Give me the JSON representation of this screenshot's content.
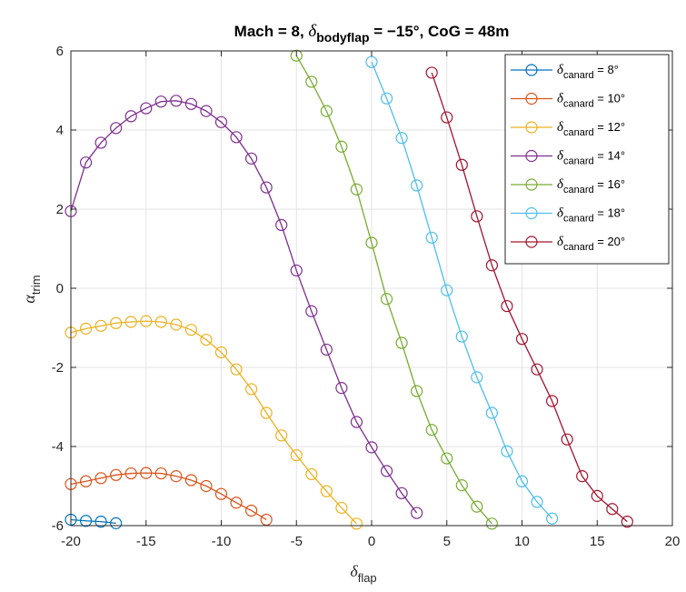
{
  "chart_data": {
    "type": "line",
    "title": {
      "prefix": "Mach = 8, ",
      "symbol": "δ",
      "subscript": "bodyflap",
      "suffix": " = −15°, CoG = 48m"
    },
    "xlabel": {
      "symbol": "δ",
      "subscript": "flap"
    },
    "ylabel": {
      "symbol": "α",
      "subscript": "trim"
    },
    "xlim": [
      -20,
      20
    ],
    "ylim": [
      -6,
      6
    ],
    "xticks": [
      -20,
      -15,
      -10,
      -5,
      0,
      5,
      10,
      15,
      20
    ],
    "yticks": [
      -6,
      -4,
      -2,
      0,
      2,
      4,
      6
    ],
    "xtick_labels": [
      "-20",
      "-15",
      "-10",
      "-5",
      "0",
      "5",
      "10",
      "15",
      "20"
    ],
    "ytick_labels": [
      "-6",
      "-4",
      "-2",
      "0",
      "2",
      "4",
      "6"
    ],
    "grid": true,
    "legend_position": "top-right",
    "series": [
      {
        "symbol": "δ",
        "subscript": "canard",
        "suffix": " = 8°",
        "color": "#0072BD",
        "x": [
          -20,
          -19,
          -18,
          -17
        ],
        "y": [
          -5.85,
          -5.88,
          -5.9,
          -5.94
        ]
      },
      {
        "symbol": "δ",
        "subscript": "canard",
        "suffix": " = 10°",
        "color": "#D95319",
        "x": [
          -20,
          -19,
          -18,
          -17,
          -16,
          -15,
          -14,
          -13,
          -12,
          -11,
          -10,
          -9,
          -8,
          -7
        ],
        "y": [
          -4.95,
          -4.88,
          -4.8,
          -4.72,
          -4.68,
          -4.67,
          -4.68,
          -4.75,
          -4.85,
          -5.0,
          -5.2,
          -5.42,
          -5.62,
          -5.85
        ]
      },
      {
        "symbol": "δ",
        "subscript": "canard",
        "suffix": " = 12°",
        "color": "#EDB120",
        "x": [
          -20,
          -19,
          -18,
          -17,
          -16,
          -15,
          -14,
          -13,
          -12,
          -11,
          -10,
          -9,
          -8,
          -7,
          -6,
          -5,
          -4,
          -3,
          -2,
          -1
        ],
        "y": [
          -1.12,
          -1.02,
          -0.95,
          -0.88,
          -0.85,
          -0.83,
          -0.85,
          -0.92,
          -1.05,
          -1.3,
          -1.62,
          -2.05,
          -2.55,
          -3.15,
          -3.72,
          -4.22,
          -4.7,
          -5.13,
          -5.55,
          -5.95
        ]
      },
      {
        "symbol": "δ",
        "subscript": "canard",
        "suffix": " = 14°",
        "color": "#7E2F8E",
        "x": [
          -20,
          -19,
          -18,
          -17,
          -16,
          -15,
          -14,
          -13,
          -12,
          -11,
          -10,
          -9,
          -8,
          -7,
          -6,
          -5,
          -4,
          -3,
          -2,
          -1,
          0,
          1,
          2,
          3
        ],
        "y": [
          1.95,
          3.18,
          3.68,
          4.05,
          4.35,
          4.55,
          4.72,
          4.74,
          4.66,
          4.48,
          4.2,
          3.82,
          3.28,
          2.55,
          1.6,
          0.45,
          -0.58,
          -1.55,
          -2.52,
          -3.38,
          -4.02,
          -4.62,
          -5.18,
          -5.68
        ]
      },
      {
        "symbol": "δ",
        "subscript": "canard",
        "suffix": " = 16°",
        "color": "#77AC30",
        "x": [
          -5,
          -4,
          -3,
          -2,
          -1,
          0,
          1,
          2,
          3,
          4,
          5,
          6,
          7,
          8
        ],
        "y": [
          5.88,
          5.22,
          4.48,
          3.58,
          2.5,
          1.15,
          -0.27,
          -1.38,
          -2.6,
          -3.58,
          -4.3,
          -4.98,
          -5.52,
          -5.95
        ]
      },
      {
        "symbol": "δ",
        "subscript": "canard",
        "suffix": " = 18°",
        "color": "#4DBEEE",
        "x": [
          0,
          1,
          2,
          3,
          4,
          5,
          6,
          7,
          8,
          9,
          10,
          11,
          12
        ],
        "y": [
          5.72,
          4.8,
          3.8,
          2.6,
          1.28,
          -0.05,
          -1.22,
          -2.25,
          -3.15,
          -4.12,
          -4.88,
          -5.4,
          -5.82
        ]
      },
      {
        "symbol": "δ",
        "subscript": "canard",
        "suffix": " = 20°",
        "color": "#A2142F",
        "x": [
          4,
          5,
          6,
          7,
          8,
          9,
          10,
          11,
          12,
          13,
          14,
          15,
          16,
          17
        ],
        "y": [
          5.45,
          4.32,
          3.12,
          1.82,
          0.58,
          -0.45,
          -1.28,
          -2.05,
          -2.85,
          -3.82,
          -4.75,
          -5.25,
          -5.58,
          -5.9
        ]
      }
    ]
  }
}
